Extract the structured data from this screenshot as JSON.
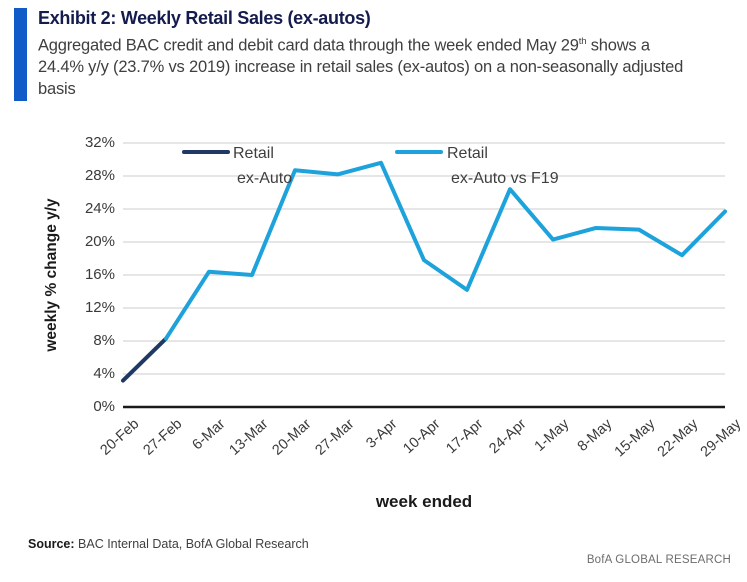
{
  "header": {
    "exhibit_title": "Exhibit 2: Weekly Retail Sales (ex-autos)",
    "accent_bar_color": "#115BC9",
    "subtitle": {
      "line1_pre": "Aggregated BAC credit and debit card data through the week ended May 29",
      "line1_sup": "th",
      "line1_post": " shows a",
      "line2": "24.4% y/y (23.7% vs 2019) increase in retail sales (ex-autos) on a non-seasonally adjusted",
      "line3": "basis"
    }
  },
  "chart_data": {
    "type": "line",
    "title": "",
    "xlabel": "week ended",
    "ylabel": "weekly % change y/y",
    "ylim": [
      0,
      32
    ],
    "ytick_step": 4,
    "ytick_suffix": "%",
    "grid": true,
    "grid_color": "#D6D6D6",
    "axis_color": "#1A1A1A",
    "legend_position": "top-inside",
    "categories": [
      "20-Feb",
      "27-Feb",
      "6-Mar",
      "13-Mar",
      "20-Mar",
      "27-Mar",
      "3-Apr",
      "10-Apr",
      "17-Apr",
      "24-Apr",
      "1-May",
      "8-May",
      "15-May",
      "22-May",
      "29-May"
    ],
    "series": [
      {
        "name": "Retail ex-Auto",
        "color": "#1F3864",
        "values": [
          3.2,
          8.3,
          null,
          null,
          null,
          null,
          null,
          null,
          null,
          null,
          null,
          null,
          null,
          null,
          null
        ]
      },
      {
        "name": "Retail ex-Auto vs F19",
        "color": "#1DA2DC",
        "values": [
          null,
          8.3,
          16.4,
          16.0,
          28.7,
          28.2,
          29.6,
          17.8,
          14.2,
          26.4,
          20.3,
          21.7,
          21.5,
          18.4,
          23.7
        ]
      }
    ],
    "legend_entries": [
      {
        "line1": "Retail",
        "line2": "ex-Auto"
      },
      {
        "line1": "Retail",
        "line2": "ex-Auto vs F19"
      }
    ]
  },
  "footer": {
    "source_label": "Source:",
    "source_text": " BAC Internal Data, BofA Global Research",
    "brand": "BofA GLOBAL RESEARCH"
  }
}
